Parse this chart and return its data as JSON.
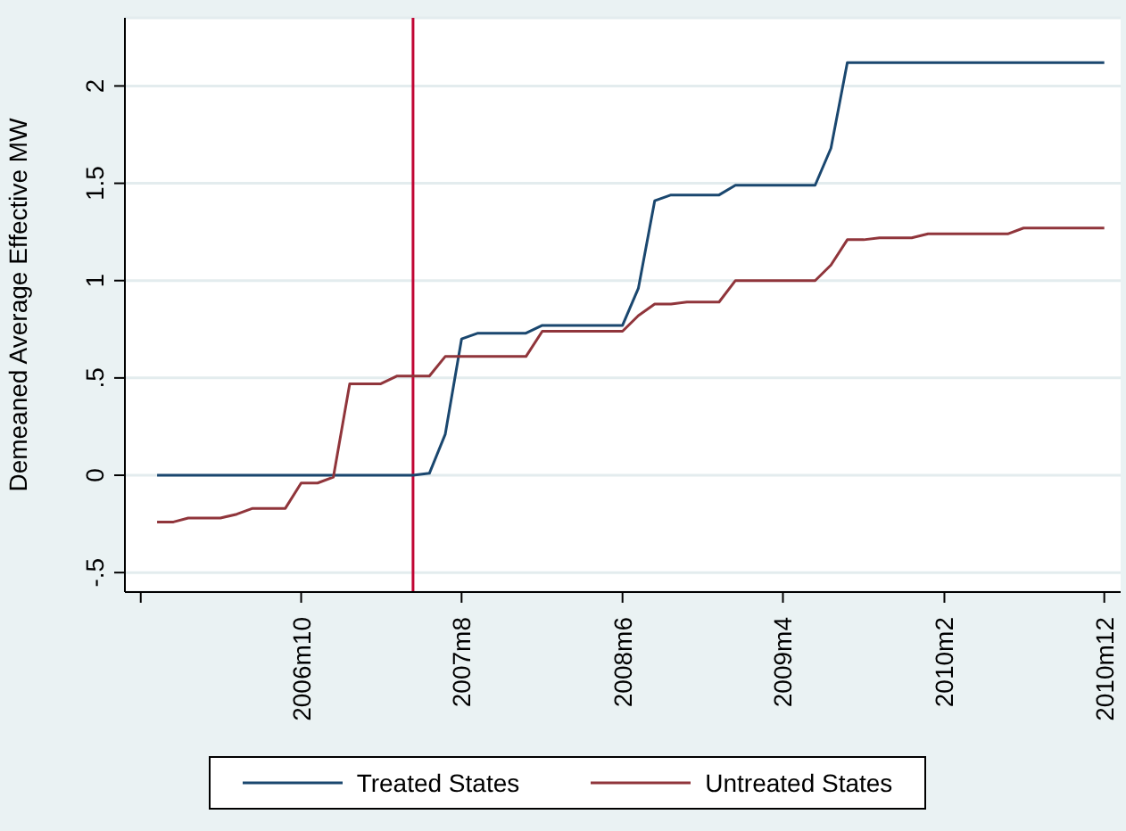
{
  "chart_data": {
    "type": "line",
    "ylabel": "Demeaned Average Effective MW",
    "x": [
      "2006-01",
      "2006-02",
      "2006-03",
      "2006-04",
      "2006-05",
      "2006-06",
      "2006-07",
      "2006-08",
      "2006-09",
      "2006-10",
      "2006-11",
      "2006-12",
      "2007-01",
      "2007-02",
      "2007-03",
      "2007-04",
      "2007-05",
      "2007-06",
      "2007-07",
      "2007-08",
      "2007-09",
      "2007-10",
      "2007-11",
      "2007-12",
      "2008-01",
      "2008-02",
      "2008-03",
      "2008-04",
      "2008-05",
      "2008-06",
      "2008-07",
      "2008-08",
      "2008-09",
      "2008-10",
      "2008-11",
      "2008-12",
      "2009-01",
      "2009-02",
      "2009-03",
      "2009-04",
      "2009-05",
      "2009-06",
      "2009-07",
      "2009-08",
      "2009-09",
      "2009-10",
      "2009-11",
      "2009-12",
      "2010-01",
      "2010-02",
      "2010-03",
      "2010-04",
      "2010-05",
      "2010-06",
      "2010-07",
      "2010-08",
      "2010-09",
      "2010-10",
      "2010-11",
      "2010-12"
    ],
    "series": [
      {
        "name": "Treated States",
        "color": "#1a476f",
        "values": [
          0,
          0,
          0,
          0,
          0,
          0,
          0,
          0,
          0,
          0,
          0,
          0,
          0,
          0,
          0,
          0,
          0,
          0.01,
          0.21,
          0.7,
          0.73,
          0.73,
          0.73,
          0.73,
          0.77,
          0.77,
          0.77,
          0.77,
          0.77,
          0.77,
          0.96,
          1.41,
          1.44,
          1.44,
          1.44,
          1.44,
          1.49,
          1.49,
          1.49,
          1.49,
          1.49,
          1.49,
          1.68,
          2.12,
          2.12,
          2.12,
          2.12,
          2.12,
          2.12,
          2.12,
          2.12,
          2.12,
          2.12,
          2.12,
          2.12,
          2.12,
          2.12,
          2.12,
          2.12,
          2.12
        ]
      },
      {
        "name": "Untreated States",
        "color": "#90353b",
        "values": [
          -0.24,
          -0.24,
          -0.22,
          -0.22,
          -0.22,
          -0.2,
          -0.17,
          -0.17,
          -0.17,
          -0.04,
          -0.04,
          -0.01,
          0.47,
          0.47,
          0.47,
          0.51,
          0.51,
          0.51,
          0.61,
          0.61,
          0.61,
          0.61,
          0.61,
          0.61,
          0.74,
          0.74,
          0.74,
          0.74,
          0.74,
          0.74,
          0.82,
          0.88,
          0.88,
          0.89,
          0.89,
          0.89,
          1.0,
          1.0,
          1.0,
          1.0,
          1.0,
          1.0,
          1.08,
          1.21,
          1.21,
          1.22,
          1.22,
          1.22,
          1.24,
          1.24,
          1.24,
          1.24,
          1.24,
          1.24,
          1.27,
          1.27,
          1.27,
          1.27,
          1.27,
          1.27
        ]
      }
    ],
    "xlim": [
      "2005-11",
      "2011-01"
    ],
    "xticks": [
      {
        "value": "2005-12",
        "label": null
      },
      {
        "value": "2006-10",
        "label": "2006m10"
      },
      {
        "value": "2007-08",
        "label": "2007m8"
      },
      {
        "value": "2008-06",
        "label": "2008m6"
      },
      {
        "value": "2009-04",
        "label": "2009m4"
      },
      {
        "value": "2010-02",
        "label": "2010m2"
      },
      {
        "value": "2010-12",
        "label": "2010m12"
      }
    ],
    "ylim": [
      -0.6,
      2.35
    ],
    "yticks": [
      {
        "value": -0.5,
        "label": "-.5"
      },
      0,
      {
        "value": 0.5,
        "label": ".5"
      },
      1,
      1.5,
      2
    ],
    "ref_lines": [
      {
        "axis": "x",
        "value": "2007-05",
        "color": "#c10534"
      }
    ],
    "grid": "y",
    "legend": "bottom",
    "marker": "none"
  }
}
